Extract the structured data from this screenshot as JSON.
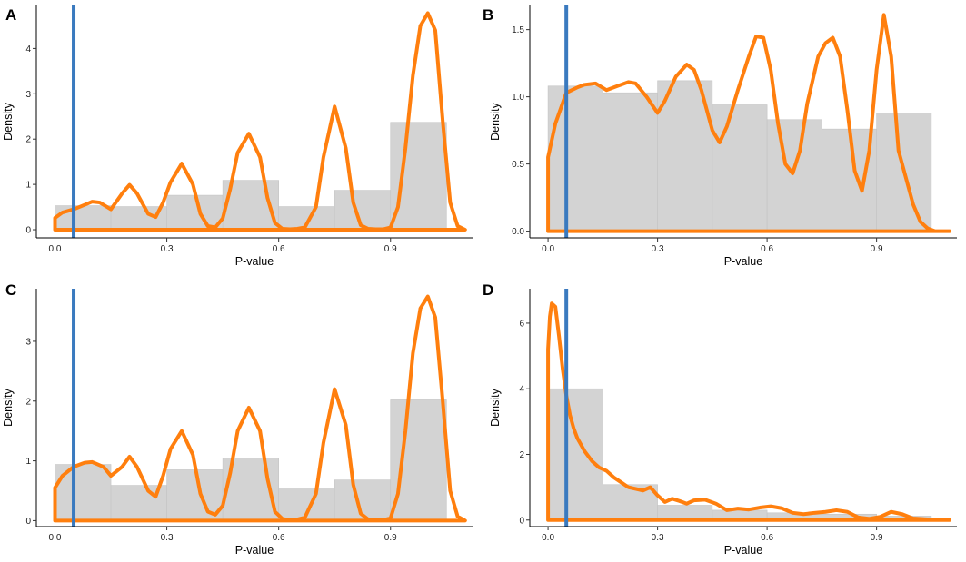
{
  "colors": {
    "histogram_fill": "#d3d3d3",
    "histogram_stroke": "#c4c4c4",
    "density_line": "#ff7f0e",
    "threshold_line": "#3a7abf",
    "axis": "#000000"
  },
  "chart_data": [
    {
      "type": "histogram-density",
      "label": "A",
      "xlabel": "P-value",
      "ylabel": "Density",
      "xlim": [
        -0.05,
        1.12
      ],
      "ylim": [
        -0.18,
        4.95
      ],
      "xticks": [
        0.0,
        0.3,
        0.6,
        0.9
      ],
      "xtick_labels": [
        "0.0",
        "0.3",
        "0.6",
        "0.9"
      ],
      "yticks": [
        0,
        1,
        2,
        3,
        4
      ],
      "ytick_labels": [
        "0",
        "1",
        "2",
        "3",
        "4"
      ],
      "threshold_x": 0.05,
      "bins": [
        {
          "start": 0.0,
          "end": 0.15,
          "density": 0.53
        },
        {
          "start": 0.15,
          "end": 0.3,
          "density": 0.51
        },
        {
          "start": 0.3,
          "end": 0.45,
          "density": 0.76
        },
        {
          "start": 0.45,
          "end": 0.6,
          "density": 1.09
        },
        {
          "start": 0.6,
          "end": 0.75,
          "density": 0.51
        },
        {
          "start": 0.75,
          "end": 0.9,
          "density": 0.87
        },
        {
          "start": 0.9,
          "end": 1.05,
          "density": 2.37
        }
      ],
      "density_x": [
        0.0,
        0.02,
        0.05,
        0.08,
        0.1,
        0.12,
        0.15,
        0.18,
        0.2,
        0.22,
        0.25,
        0.27,
        0.29,
        0.31,
        0.34,
        0.37,
        0.39,
        0.41,
        0.43,
        0.45,
        0.47,
        0.49,
        0.52,
        0.55,
        0.57,
        0.59,
        0.61,
        0.63,
        0.65,
        0.67,
        0.7,
        0.72,
        0.75,
        0.78,
        0.8,
        0.82,
        0.84,
        0.86,
        0.88,
        0.9,
        0.92,
        0.94,
        0.96,
        0.98,
        1.0,
        1.02,
        1.04,
        1.06,
        1.08,
        1.1
      ],
      "density_y": [
        0.26,
        0.38,
        0.45,
        0.55,
        0.62,
        0.6,
        0.45,
        0.8,
        0.99,
        0.8,
        0.35,
        0.28,
        0.6,
        1.05,
        1.46,
        1.0,
        0.35,
        0.08,
        0.05,
        0.25,
        0.9,
        1.7,
        2.12,
        1.6,
        0.7,
        0.15,
        0.02,
        0.01,
        0.02,
        0.05,
        0.5,
        1.6,
        2.72,
        1.8,
        0.6,
        0.1,
        0.02,
        0.01,
        0.01,
        0.05,
        0.5,
        1.8,
        3.4,
        4.5,
        4.78,
        4.4,
        2.4,
        0.6,
        0.08,
        0.0
      ]
    },
    {
      "type": "histogram-density",
      "label": "B",
      "xlabel": "P-value",
      "ylabel": "Density",
      "xlim": [
        -0.05,
        1.12
      ],
      "ylim": [
        -0.05,
        1.68
      ],
      "xticks": [
        0.0,
        0.3,
        0.6,
        0.9
      ],
      "xtick_labels": [
        "0.0",
        "0.3",
        "0.6",
        "0.9"
      ],
      "yticks": [
        0.0,
        0.5,
        1.0,
        1.5
      ],
      "ytick_labels": [
        "0.0",
        "0.5",
        "1.0",
        "1.5"
      ],
      "threshold_x": 0.05,
      "bins": [
        {
          "start": 0.0,
          "end": 0.15,
          "density": 1.08
        },
        {
          "start": 0.15,
          "end": 0.3,
          "density": 1.03
        },
        {
          "start": 0.3,
          "end": 0.45,
          "density": 1.12
        },
        {
          "start": 0.45,
          "end": 0.6,
          "density": 0.94
        },
        {
          "start": 0.6,
          "end": 0.75,
          "density": 0.83
        },
        {
          "start": 0.75,
          "end": 0.9,
          "density": 0.76
        },
        {
          "start": 0.9,
          "end": 1.05,
          "density": 0.88
        }
      ],
      "density_x": [
        0.0,
        0.02,
        0.05,
        0.08,
        0.1,
        0.13,
        0.16,
        0.19,
        0.22,
        0.24,
        0.27,
        0.3,
        0.32,
        0.35,
        0.38,
        0.4,
        0.42,
        0.45,
        0.47,
        0.49,
        0.52,
        0.55,
        0.57,
        0.59,
        0.61,
        0.63,
        0.65,
        0.67,
        0.69,
        0.71,
        0.74,
        0.76,
        0.78,
        0.8,
        0.82,
        0.84,
        0.86,
        0.88,
        0.9,
        0.92,
        0.94,
        0.96,
        0.98,
        1.0,
        1.02,
        1.04,
        1.06,
        1.08,
        1.1
      ],
      "density_y": [
        0.55,
        0.8,
        1.03,
        1.07,
        1.09,
        1.1,
        1.05,
        1.08,
        1.11,
        1.1,
        1.0,
        0.88,
        0.97,
        1.15,
        1.24,
        1.2,
        1.05,
        0.75,
        0.66,
        0.78,
        1.05,
        1.3,
        1.45,
        1.44,
        1.2,
        0.8,
        0.5,
        0.43,
        0.6,
        0.95,
        1.3,
        1.4,
        1.44,
        1.3,
        0.9,
        0.45,
        0.3,
        0.6,
        1.2,
        1.61,
        1.3,
        0.6,
        0.4,
        0.2,
        0.07,
        0.02,
        0.0,
        0.0,
        0.0
      ]
    },
    {
      "type": "histogram-density",
      "label": "C",
      "xlabel": "P-value",
      "ylabel": "Density",
      "xlim": [
        -0.05,
        1.12
      ],
      "ylim": [
        -0.1,
        3.88
      ],
      "xticks": [
        0.0,
        0.3,
        0.6,
        0.9
      ],
      "xtick_labels": [
        "0.0",
        "0.3",
        "0.6",
        "0.9"
      ],
      "yticks": [
        0,
        1,
        2,
        3
      ],
      "ytick_labels": [
        "0",
        "1",
        "2",
        "3"
      ],
      "threshold_x": 0.05,
      "bins": [
        {
          "start": 0.0,
          "end": 0.15,
          "density": 0.94
        },
        {
          "start": 0.15,
          "end": 0.3,
          "density": 0.59
        },
        {
          "start": 0.3,
          "end": 0.45,
          "density": 0.85
        },
        {
          "start": 0.45,
          "end": 0.6,
          "density": 1.05
        },
        {
          "start": 0.6,
          "end": 0.75,
          "density": 0.53
        },
        {
          "start": 0.75,
          "end": 0.9,
          "density": 0.68
        },
        {
          "start": 0.9,
          "end": 1.05,
          "density": 2.02
        }
      ],
      "density_x": [
        0.0,
        0.02,
        0.05,
        0.08,
        0.1,
        0.13,
        0.15,
        0.18,
        0.2,
        0.22,
        0.25,
        0.27,
        0.29,
        0.31,
        0.34,
        0.37,
        0.39,
        0.41,
        0.43,
        0.45,
        0.47,
        0.49,
        0.52,
        0.55,
        0.57,
        0.59,
        0.61,
        0.63,
        0.65,
        0.67,
        0.7,
        0.72,
        0.75,
        0.78,
        0.8,
        0.82,
        0.84,
        0.86,
        0.88,
        0.9,
        0.92,
        0.94,
        0.96,
        0.98,
        1.0,
        1.02,
        1.04,
        1.06,
        1.08,
        1.1
      ],
      "density_y": [
        0.55,
        0.75,
        0.9,
        0.97,
        0.98,
        0.9,
        0.75,
        0.9,
        1.07,
        0.9,
        0.5,
        0.4,
        0.75,
        1.2,
        1.5,
        1.1,
        0.45,
        0.15,
        0.1,
        0.25,
        0.8,
        1.5,
        1.89,
        1.5,
        0.7,
        0.15,
        0.03,
        0.01,
        0.02,
        0.05,
        0.45,
        1.3,
        2.2,
        1.6,
        0.6,
        0.12,
        0.02,
        0.01,
        0.01,
        0.04,
        0.45,
        1.5,
        2.8,
        3.55,
        3.75,
        3.4,
        2.0,
        0.5,
        0.07,
        0.0
      ]
    },
    {
      "type": "histogram-density",
      "label": "D",
      "xlabel": "P-value",
      "ylabel": "Density",
      "xlim": [
        -0.05,
        1.12
      ],
      "ylim": [
        -0.2,
        7.05
      ],
      "xticks": [
        0.0,
        0.3,
        0.6,
        0.9
      ],
      "xtick_labels": [
        "0.0",
        "0.3",
        "0.6",
        "0.9"
      ],
      "yticks": [
        0,
        2,
        4,
        6
      ],
      "ytick_labels": [
        "0",
        "2",
        "4",
        "6"
      ],
      "threshold_x": 0.05,
      "bins": [
        {
          "start": 0.0,
          "end": 0.15,
          "density": 4.0
        },
        {
          "start": 0.15,
          "end": 0.3,
          "density": 1.08
        },
        {
          "start": 0.3,
          "end": 0.45,
          "density": 0.45
        },
        {
          "start": 0.45,
          "end": 0.6,
          "density": 0.3
        },
        {
          "start": 0.6,
          "end": 0.75,
          "density": 0.22
        },
        {
          "start": 0.75,
          "end": 0.9,
          "density": 0.18
        },
        {
          "start": 0.9,
          "end": 1.05,
          "density": 0.12
        }
      ],
      "density_x": [
        0.0,
        0.005,
        0.01,
        0.02,
        0.03,
        0.04,
        0.05,
        0.06,
        0.07,
        0.08,
        0.1,
        0.12,
        0.14,
        0.16,
        0.18,
        0.2,
        0.22,
        0.24,
        0.26,
        0.28,
        0.3,
        0.32,
        0.34,
        0.36,
        0.38,
        0.4,
        0.43,
        0.46,
        0.49,
        0.52,
        0.55,
        0.58,
        0.61,
        0.64,
        0.67,
        0.7,
        0.73,
        0.76,
        0.79,
        0.82,
        0.85,
        0.88,
        0.91,
        0.94,
        0.97,
        1.0,
        1.04,
        1.08,
        1.1
      ],
      "density_y": [
        5.2,
        6.2,
        6.6,
        6.5,
        5.6,
        4.6,
        3.8,
        3.2,
        2.8,
        2.5,
        2.1,
        1.8,
        1.6,
        1.5,
        1.3,
        1.15,
        1.0,
        0.95,
        0.9,
        1.0,
        0.75,
        0.55,
        0.65,
        0.58,
        0.5,
        0.6,
        0.62,
        0.5,
        0.3,
        0.35,
        0.32,
        0.38,
        0.42,
        0.36,
        0.22,
        0.18,
        0.22,
        0.25,
        0.3,
        0.25,
        0.08,
        0.04,
        0.1,
        0.25,
        0.18,
        0.05,
        0.02,
        0.0,
        0.0
      ]
    }
  ]
}
